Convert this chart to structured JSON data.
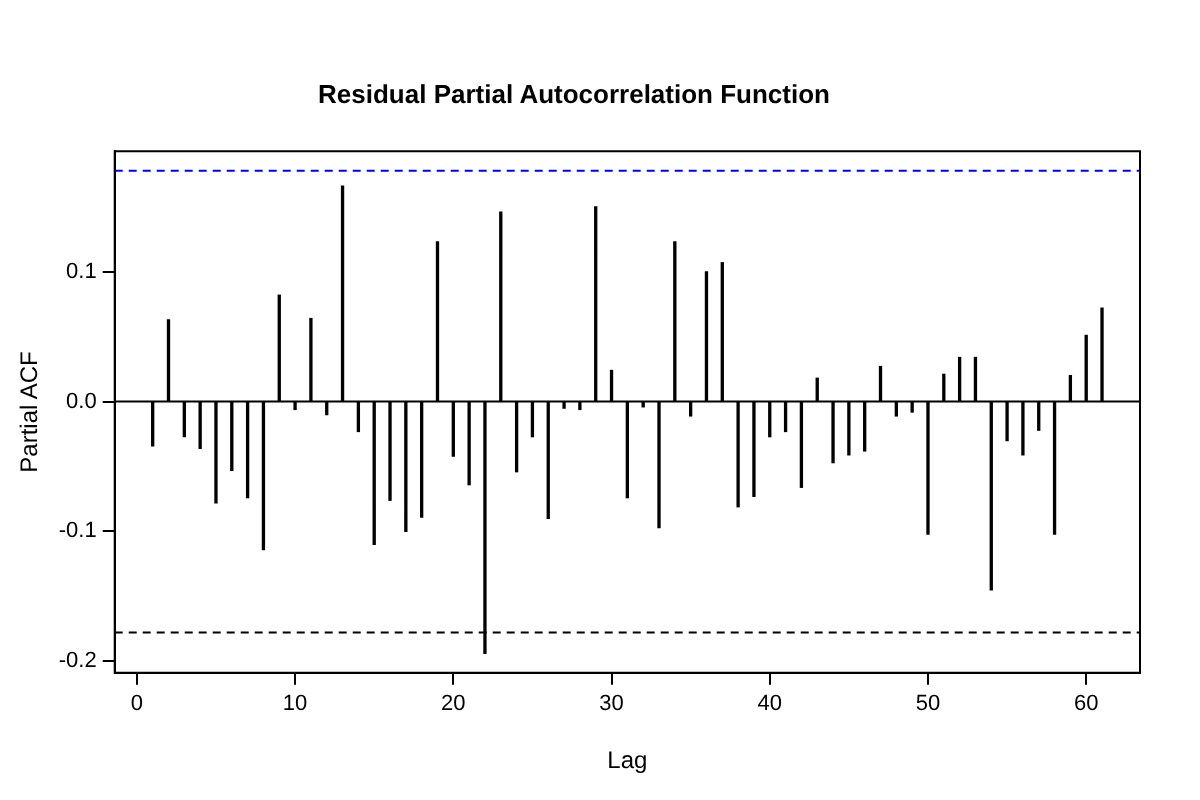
{
  "chart_data": {
    "type": "bar",
    "title": "Residual Partial Autocorrelation Function",
    "xlabel": "Lag",
    "ylabel": "Partial ACF",
    "x": [
      1,
      2,
      3,
      4,
      5,
      6,
      7,
      8,
      9,
      10,
      11,
      12,
      13,
      14,
      15,
      16,
      17,
      18,
      19,
      20,
      21,
      22,
      23,
      24,
      25,
      26,
      27,
      28,
      29,
      30,
      31,
      32,
      33,
      34,
      35,
      36,
      37,
      38,
      39,
      40,
      41,
      42,
      43,
      44,
      45,
      46,
      47,
      48,
      49,
      50,
      51,
      52,
      53,
      54,
      55,
      56,
      57,
      58,
      59,
      60,
      61
    ],
    "values": [
      -0.034,
      0.063,
      -0.027,
      -0.036,
      -0.078,
      -0.053,
      -0.074,
      -0.114,
      0.082,
      -0.006,
      0.064,
      -0.01,
      0.166,
      -0.023,
      -0.11,
      -0.076,
      -0.1,
      -0.089,
      0.123,
      -0.042,
      -0.064,
      -0.194,
      0.146,
      -0.054,
      -0.027,
      -0.09,
      -0.005,
      -0.006,
      0.15,
      0.024,
      -0.074,
      -0.004,
      -0.097,
      0.123,
      -0.011,
      0.1,
      0.107,
      -0.081,
      -0.073,
      -0.027,
      -0.023,
      -0.066,
      0.018,
      -0.047,
      -0.041,
      -0.038,
      0.027,
      -0.011,
      -0.008,
      -0.102,
      0.021,
      0.034,
      0.034,
      -0.145,
      -0.03,
      -0.041,
      -0.022,
      -0.102,
      0.02,
      0.051,
      0.072
    ],
    "color": "#000000",
    "xlim": [
      -1.4,
      63.4
    ],
    "xticks": [
      0,
      10,
      20,
      30,
      40,
      50,
      60
    ],
    "ylim": [
      -0.209,
      0.193
    ],
    "yticks": [
      {
        "value": -0.2,
        "label": "-0.2"
      },
      {
        "value": -0.1,
        "label": "-0.1"
      },
      {
        "value": 0,
        "label": "0.0"
      },
      {
        "value": 0.1,
        "label": "0.1"
      }
    ],
    "ref_lines": [
      {
        "axis": "y",
        "value": 0.178,
        "color": "#0000ff",
        "line_style": "dashed"
      },
      {
        "axis": "y",
        "value": -0.178,
        "color": "#000000",
        "line_style": "dashed"
      },
      {
        "axis": "y",
        "value": 0,
        "color": "#000000",
        "line_style": "solid"
      }
    ]
  }
}
